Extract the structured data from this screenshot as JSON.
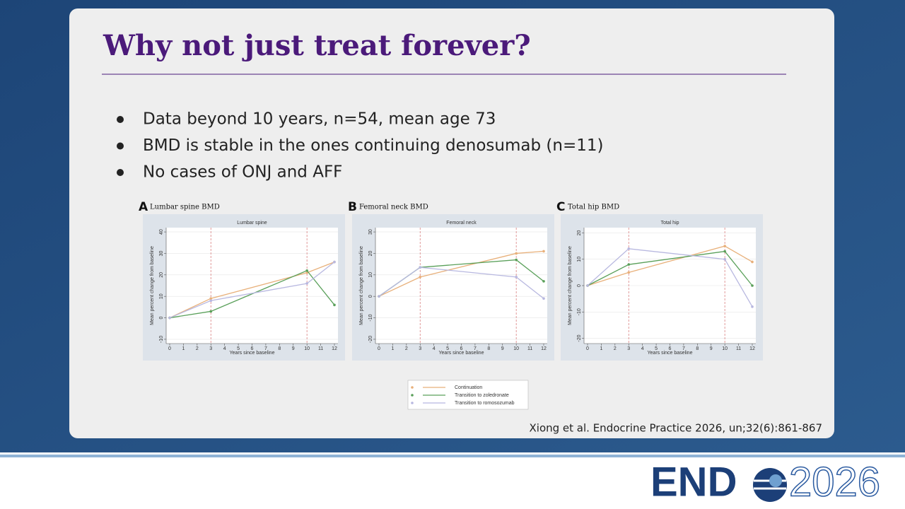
{
  "title": "Why not just treat forever?",
  "bullets": [
    "Data beyond 10 years, n=54, mean age 73",
    "BMD is stable in the ones continuing denosumab (n=11)",
    "No cases of ONJ and AFF"
  ],
  "citation": "Xiong et al. Endocrine Practice 2026, un;32(6):861-867",
  "logo": {
    "brand": "END",
    "year": "2026"
  },
  "chart_data": [
    {
      "type": "line",
      "panel": "A",
      "heading": "Lumbar spine BMD",
      "title": "Lumbar spine",
      "x_label": "Years since baseline",
      "y_label": "Mean percent change from baseline",
      "x": [
        0,
        3,
        10,
        12
      ],
      "xlim": [
        0,
        12
      ],
      "xticks": [
        0,
        1,
        2,
        3,
        4,
        5,
        6,
        7,
        8,
        9,
        10,
        11,
        12
      ],
      "ylim": [
        -12,
        42
      ],
      "yticks": [
        -10,
        0,
        10,
        20,
        30,
        40
      ],
      "grid": true,
      "series": [
        {
          "name": "Continuation",
          "color": "#e8b07a",
          "values": [
            0,
            9,
            21,
            26
          ]
        },
        {
          "name": "Transition to zoledronate",
          "color": "#5aa05a",
          "values": [
            0,
            3,
            22,
            6
          ]
        },
        {
          "name": "Transition to romosozumab",
          "color": "#b8b8e0",
          "values": [
            0,
            8,
            16,
            26
          ]
        }
      ]
    },
    {
      "type": "line",
      "panel": "B",
      "heading": "Femoral neck BMD",
      "title": "Femoral neck",
      "x_label": "Years since baseline",
      "y_label": "Mean percent change from baseline",
      "x": [
        0,
        3,
        10,
        12
      ],
      "xlim": [
        0,
        12
      ],
      "xticks": [
        0,
        1,
        2,
        3,
        4,
        5,
        6,
        7,
        8,
        9,
        10,
        11,
        12
      ],
      "ylim": [
        -22,
        32
      ],
      "yticks": [
        -20,
        -10,
        0,
        10,
        20,
        30
      ],
      "grid": true,
      "series": [
        {
          "color": "#e8b07a",
          "values": [
            0,
            9,
            20,
            21
          ]
        },
        {
          "color": "#5aa05a",
          "values": [
            0,
            13.5,
            17,
            7
          ]
        },
        {
          "color": "#b8b8e0",
          "values": [
            0,
            13.5,
            9,
            -1
          ]
        }
      ]
    },
    {
      "type": "line",
      "panel": "C",
      "heading": "Total hip BMD",
      "title": "Total hip",
      "x_label": "Years since baseline",
      "y_label": "Mean percent change from baseline",
      "x": [
        0,
        3,
        10,
        12
      ],
      "xlim": [
        0,
        12
      ],
      "xticks": [
        0,
        1,
        2,
        3,
        4,
        5,
        6,
        7,
        8,
        9,
        10,
        11,
        12
      ],
      "ylim": [
        -22,
        22
      ],
      "yticks": [
        -20,
        -10,
        0,
        10,
        20
      ],
      "grid": true,
      "series": [
        {
          "color": "#e8b07a",
          "values": [
            0,
            5,
            15,
            9
          ]
        },
        {
          "color": "#5aa05a",
          "values": [
            0,
            8,
            13,
            0
          ]
        },
        {
          "color": "#b8b8e0",
          "values": [
            0,
            14,
            10,
            -8
          ]
        }
      ]
    }
  ]
}
